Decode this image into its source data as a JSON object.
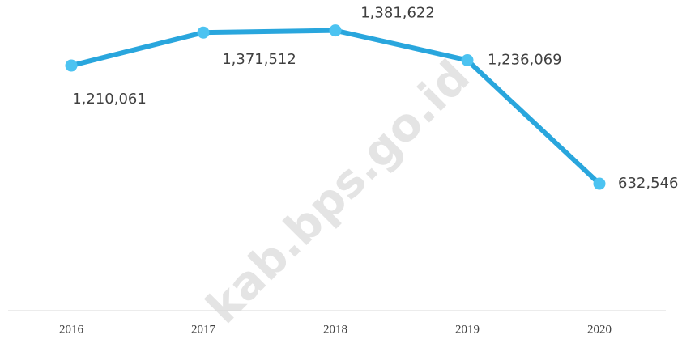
{
  "chart_data": {
    "type": "line",
    "watermark": "kab.bps.go.id",
    "categories": [
      "2016",
      "2017",
      "2018",
      "2019",
      "2020"
    ],
    "values": [
      1210061,
      1371512,
      1381622,
      1236069,
      632546
    ],
    "value_labels": [
      "1,210,061",
      "1,371,512",
      "1,381,622",
      "1,236,069",
      "632,546"
    ],
    "color": "#29a6dd",
    "marker_color": "#4cc3f1",
    "ylim": [
      0,
      1400000
    ]
  }
}
